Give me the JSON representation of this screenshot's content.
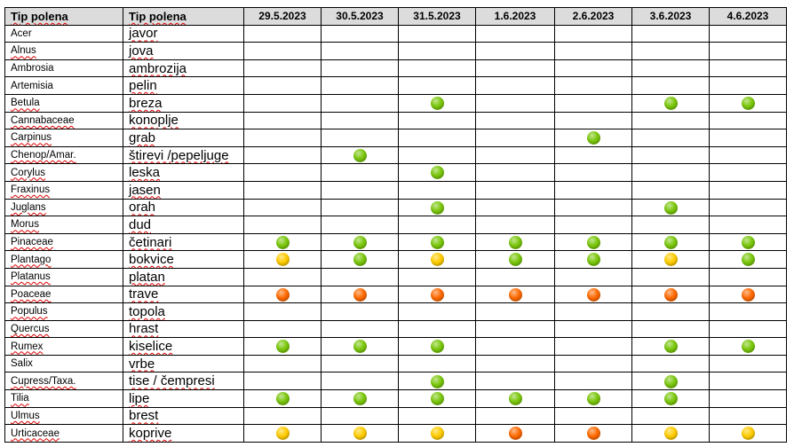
{
  "header": {
    "col1": "Tip polena",
    "col2": "Tip polena",
    "dates": [
      "29.5.2023",
      "30.5.2023",
      "31.5.2023",
      "1.6.2023",
      "2.6.2023",
      "3.6.2023",
      "4.6.2023"
    ]
  },
  "levels": {
    "g": {
      "name": "green",
      "color": "#7ac70c"
    },
    "y": {
      "name": "yellow",
      "color": "#ffcc00"
    },
    "o": {
      "name": "orange",
      "color": "#ff6a00"
    }
  },
  "rows": [
    {
      "latin": "Acer",
      "local": "javor",
      "values": [
        "",
        "",
        "",
        "",
        "",
        "",
        ""
      ]
    },
    {
      "latin": "Alnus",
      "local": "jova",
      "values": [
        "",
        "",
        "",
        "",
        "",
        "",
        ""
      ]
    },
    {
      "latin": "Ambrosia",
      "local": "ambrozija",
      "values": [
        "",
        "",
        "",
        "",
        "",
        "",
        ""
      ]
    },
    {
      "latin": "Artemisia",
      "local": "pelin",
      "values": [
        "",
        "",
        "",
        "",
        "",
        "",
        ""
      ]
    },
    {
      "latin": "Betula",
      "local": "breza",
      "values": [
        "",
        "",
        "g",
        "",
        "",
        "g",
        "g"
      ]
    },
    {
      "latin": "Cannabaceae",
      "local": "konoplje",
      "values": [
        "",
        "",
        "",
        "",
        "",
        "",
        ""
      ]
    },
    {
      "latin": "Carpinus",
      "local": "grab",
      "values": [
        "",
        "",
        "",
        "",
        "g",
        "",
        ""
      ]
    },
    {
      "latin": "Chenop/Amar.",
      "local": "štirevi /pepeljuge",
      "values": [
        "",
        "g",
        "",
        "",
        "",
        "",
        ""
      ]
    },
    {
      "latin": "Corylus",
      "local": "leska",
      "values": [
        "",
        "",
        "g",
        "",
        "",
        "",
        ""
      ]
    },
    {
      "latin": "Fraxinus",
      "local": "jasen",
      "values": [
        "",
        "",
        "",
        "",
        "",
        "",
        ""
      ]
    },
    {
      "latin": "Juglans",
      "local": "orah",
      "values": [
        "",
        "",
        "g",
        "",
        "",
        "g",
        ""
      ]
    },
    {
      "latin": "Morus",
      "local": "dud",
      "values": [
        "",
        "",
        "",
        "",
        "",
        "",
        ""
      ]
    },
    {
      "latin": "Pinaceae",
      "local": "četinari",
      "values": [
        "g",
        "g",
        "g",
        "g",
        "g",
        "g",
        "g"
      ]
    },
    {
      "latin": "Plantago",
      "local": "bokvice",
      "values": [
        "y",
        "g",
        "y",
        "g",
        "g",
        "y",
        "g"
      ]
    },
    {
      "latin": "Platanus",
      "local": "platan",
      "values": [
        "",
        "",
        "",
        "",
        "",
        "",
        ""
      ]
    },
    {
      "latin": "Poaceae",
      "local": "trave",
      "values": [
        "o",
        "o",
        "o",
        "o",
        "o",
        "o",
        "o"
      ]
    },
    {
      "latin": "Populus",
      "local": "topola",
      "values": [
        "",
        "",
        "",
        "",
        "",
        "",
        ""
      ]
    },
    {
      "latin": "Quercus",
      "local": "hrast",
      "values": [
        "",
        "",
        "",
        "",
        "",
        "",
        ""
      ]
    },
    {
      "latin": "Rumex",
      "local": "kiselice",
      "values": [
        "g",
        "g",
        "g",
        "",
        "",
        "g",
        "g"
      ]
    },
    {
      "latin": "Salix",
      "local": "vrbe",
      "values": [
        "",
        "",
        "",
        "",
        "",
        "",
        ""
      ]
    },
    {
      "latin": "Cupress/Taxa.",
      "local": "tise / čempresi",
      "values": [
        "",
        "",
        "g",
        "",
        "",
        "g",
        ""
      ]
    },
    {
      "latin": "Tilia",
      "local": "lipe",
      "values": [
        "g",
        "g",
        "g",
        "g",
        "g",
        "g",
        ""
      ]
    },
    {
      "latin": "Ulmus",
      "local": "brest",
      "values": [
        "",
        "",
        "",
        "",
        "",
        "",
        ""
      ]
    },
    {
      "latin": "Urticaceae",
      "local": "koprive",
      "values": [
        "y",
        "y",
        "y",
        "o",
        "o",
        "y",
        "y"
      ]
    }
  ]
}
